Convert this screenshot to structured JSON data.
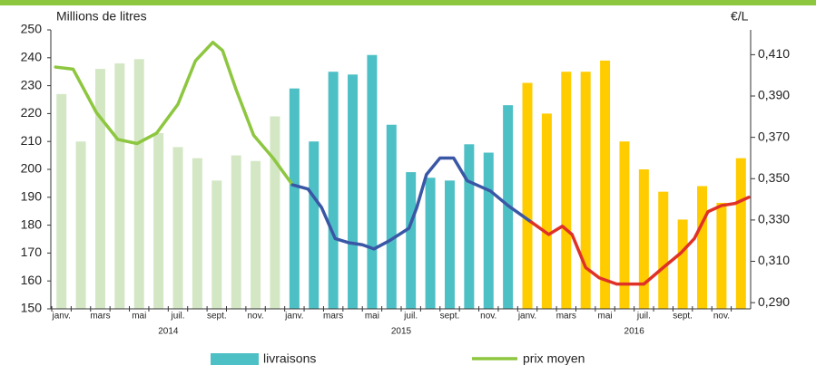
{
  "chart_data": {
    "type": "bar",
    "y_axis_label": "Millions de litres",
    "y2_axis_label": "€/L",
    "categories": [
      "janv.",
      null,
      "mars",
      null,
      "mai",
      null,
      "juil.",
      null,
      "sept.",
      null,
      "nov.",
      null,
      "janv.",
      null,
      "mars",
      null,
      "mai",
      null,
      "juil.",
      null,
      "sept.",
      null,
      "nov.",
      null,
      "janv.",
      null,
      "mars",
      null,
      "mai",
      null,
      "juil.",
      null,
      "sept.",
      null,
      "nov.",
      null
    ],
    "year_labels": [
      "2014",
      "2015",
      "2016"
    ],
    "year_colors": [
      "#d4e7c5",
      "#4dc0c6",
      "#ffcc00"
    ],
    "series": [
      {
        "name": "livraisons",
        "color": "#4dc0c6",
        "values": [
          227,
          210,
          236,
          238,
          239.5,
          213,
          208,
          204,
          196,
          205,
          203,
          219,
          229,
          210,
          235,
          234,
          241,
          216,
          199,
          197,
          196,
          209,
          206,
          223,
          231,
          220,
          235,
          235,
          239,
          210,
          200,
          192,
          182,
          194,
          188,
          204
        ]
      }
    ],
    "price": {
      "name": "prix moyen",
      "color": "#8dc63f",
      "axis": "y2",
      "segments": [
        {
          "color": "#8dc63f",
          "x": [
            0.2,
            1.1,
            2.3,
            3.4,
            4.4,
            5.4,
            6.5,
            7.4,
            8.3,
            8.8,
            9.5,
            10.4,
            11.4,
            12.4
          ],
          "values": [
            0.404,
            0.403,
            0.382,
            0.369,
            0.367,
            0.372,
            0.386,
            0.407,
            0.416,
            0.412,
            0.393,
            0.371,
            0.36,
            0.347
          ]
        },
        {
          "color": "#3a57a6",
          "x": [
            12.4,
            13.2,
            13.9,
            14.6,
            15.3,
            16.0,
            16.6,
            17.4,
            18.4,
            18.8,
            19.3,
            20.0,
            20.7,
            21.4,
            22.6,
            23.5,
            24.7
          ],
          "values": [
            0.347,
            0.345,
            0.336,
            0.321,
            0.319,
            0.318,
            0.316,
            0.32,
            0.326,
            0.336,
            0.352,
            0.36,
            0.36,
            0.349,
            0.344,
            0.337,
            0.329
          ]
        },
        {
          "color": "#e03127",
          "x": [
            24.7,
            25.6,
            26.3,
            26.8,
            27.5,
            28.2,
            29.1,
            30.5,
            31.5,
            32.4,
            33.1,
            33.8,
            34.5,
            35.2,
            35.9
          ],
          "values": [
            0.329,
            0.323,
            0.327,
            0.323,
            0.307,
            0.302,
            0.299,
            0.299,
            0.307,
            0.314,
            0.321,
            0.334,
            0.337,
            0.338,
            0.341
          ]
        }
      ]
    },
    "ylim": [
      150,
      250
    ],
    "yticks": [
      150,
      160,
      170,
      180,
      190,
      200,
      210,
      220,
      230,
      240,
      250
    ],
    "y2lim": [
      0.287,
      0.422
    ],
    "y2ticks": [
      {
        "value": 0.29,
        "label": "0,290"
      },
      {
        "value": 0.31,
        "label": "0,310"
      },
      {
        "value": 0.33,
        "label": "0,330"
      },
      {
        "value": 0.35,
        "label": "0,350"
      },
      {
        "value": 0.37,
        "label": "0,370"
      },
      {
        "value": 0.39,
        "label": "0,390"
      },
      {
        "value": 0.41,
        "label": "0,410"
      }
    ]
  }
}
